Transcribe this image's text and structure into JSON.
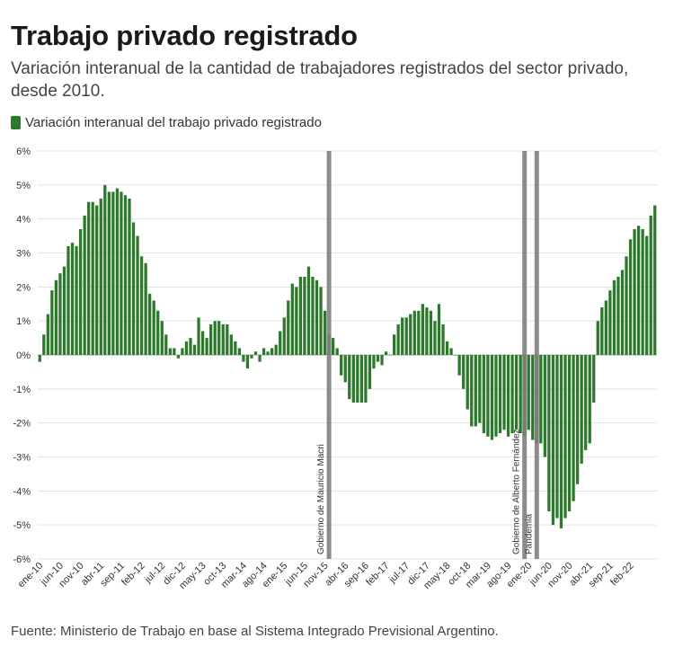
{
  "header": {
    "title": "Trabajo privado registrado",
    "subtitle": "Variación interanual de la cantidad de trabajadores registrados del sector privado, desde 2010."
  },
  "footer": {
    "source": "Fuente: Ministerio de Trabajo en base al Sistema Integrado Previsional Argentino."
  },
  "colors": {
    "bar": "#2a7a2a",
    "grid": "#e3e3e3",
    "marker": "#7f7f7f"
  },
  "chart_data": {
    "type": "bar",
    "title": "Trabajo privado registrado",
    "legend": "top-left",
    "grid": true,
    "y_unit": "%",
    "ylim": [
      -6,
      6
    ],
    "y_ticks": [
      "6%",
      "5%",
      "4%",
      "3%",
      "2%",
      "1%",
      "0%",
      "-1%",
      "-2%",
      "-3%",
      "-4%",
      "-5%",
      "-6%"
    ],
    "x_tick_labels": [
      "ene-10",
      "jun-10",
      "nov-10",
      "abr-11",
      "sep-11",
      "feb-12",
      "jul-12",
      "dic-12",
      "may-13",
      "oct-13",
      "mar-14",
      "ago-14",
      "ene-15",
      "jun-15",
      "nov-15",
      "abr-16",
      "sep-16",
      "feb-17",
      "jul-17",
      "dic-17",
      "may-18",
      "oct-18",
      "mar-19",
      "ago-19",
      "ene-20",
      "jun-20",
      "nov-20",
      "abr-21",
      "sep-21",
      "feb-22"
    ],
    "series": [
      {
        "name": "Variación interanual del trabajo privado registrado",
        "start": "ene-10",
        "frequency": "monthly",
        "values": [
          -0.2,
          0.6,
          1.2,
          1.9,
          2.2,
          2.4,
          2.6,
          3.2,
          3.3,
          3.2,
          3.7,
          4.1,
          4.5,
          4.5,
          4.4,
          4.6,
          5.0,
          4.8,
          4.8,
          4.9,
          4.8,
          4.7,
          4.6,
          3.9,
          3.5,
          2.9,
          2.7,
          1.8,
          1.6,
          1.3,
          1.0,
          0.6,
          0.2,
          0.2,
          -0.1,
          0.2,
          0.4,
          0.5,
          0.3,
          1.1,
          0.7,
          0.5,
          0.9,
          1.0,
          1.0,
          0.9,
          0.9,
          0.6,
          0.4,
          0.2,
          -0.2,
          -0.4,
          -0.1,
          0.1,
          -0.2,
          0.2,
          0.1,
          0.2,
          0.3,
          0.7,
          1.1,
          1.6,
          2.1,
          2.0,
          2.3,
          2.3,
          2.6,
          2.3,
          2.2,
          2.0,
          1.3,
          0.6,
          0.5,
          0.2,
          -0.6,
          -0.8,
          -1.3,
          -1.4,
          -1.4,
          -1.4,
          -1.4,
          -1.0,
          -0.4,
          -0.2,
          -0.3,
          0.1,
          0.0,
          0.6,
          0.9,
          1.1,
          1.1,
          1.2,
          1.3,
          1.3,
          1.5,
          1.4,
          1.3,
          1.0,
          1.5,
          0.9,
          0.4,
          0.2,
          0.0,
          -0.6,
          -1.0,
          -1.6,
          -2.1,
          -2.1,
          -2.0,
          -2.3,
          -2.4,
          -2.5,
          -2.4,
          -2.3,
          -2.2,
          -2.4,
          -2.3,
          -2.2,
          -2.3,
          -2.4,
          -2.2,
          -2.5,
          -2.6,
          -2.6,
          -3.0,
          -4.6,
          -5.0,
          -4.8,
          -5.1,
          -4.8,
          -4.6,
          -4.3,
          -3.8,
          -3.2,
          -2.8,
          -2.6,
          -1.4,
          1.0,
          1.4,
          1.6,
          1.9,
          2.2,
          2.3,
          2.5,
          2.9,
          3.4,
          3.7,
          3.8,
          3.7,
          3.5,
          4.1,
          4.4
        ]
      }
    ],
    "events": [
      {
        "label": "Gobierno de Mauricio Macri",
        "at": "dic-15"
      },
      {
        "label": "Gobierno de Alberto Fernández",
        "at": "dic-19"
      },
      {
        "label": "Pandemia",
        "at": "mar-20"
      }
    ]
  }
}
